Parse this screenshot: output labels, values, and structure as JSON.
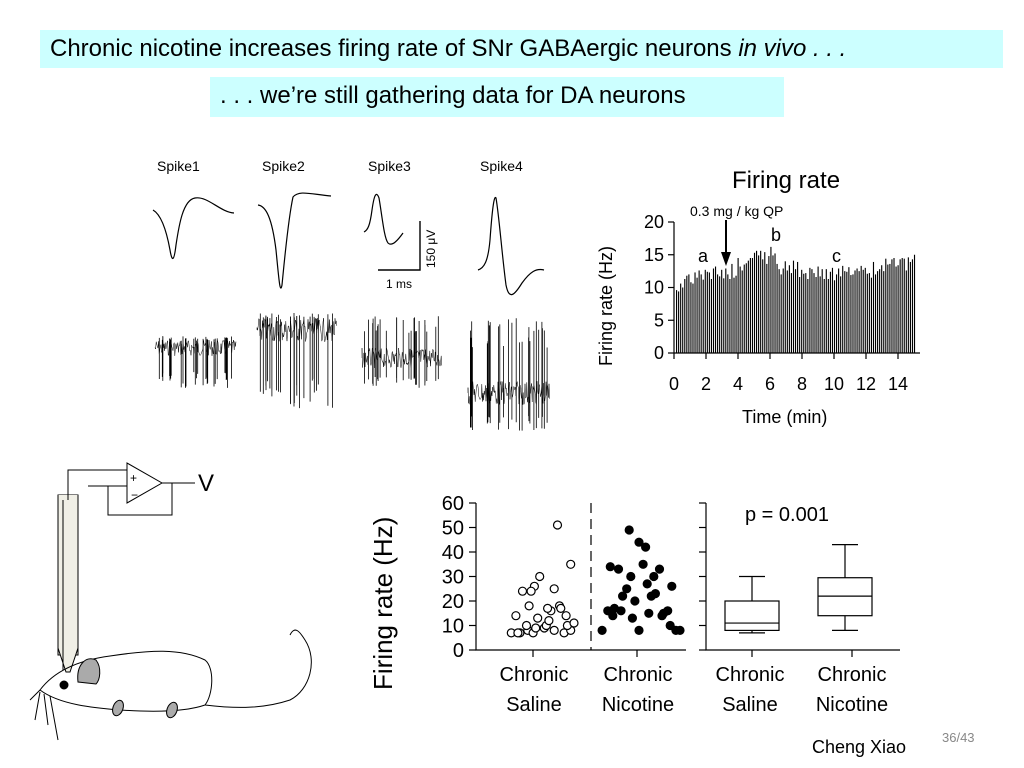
{
  "title_main": "Chronic nicotine increases firing rate of SNr GABAergic neurons ",
  "title_italic": "in vivo . . .",
  "subtitle": ". . . we’re still gathering data for DA neurons",
  "spikes": {
    "labels": [
      "Spike1",
      "Spike2",
      "Spike3",
      "Spike4"
    ],
    "scale_voltage": "150 μV",
    "scale_time": "1 ms"
  },
  "amp_label": "V",
  "amp_plus": "+",
  "amp_minus": "−",
  "firing_chart": {
    "title": "Firing rate",
    "annotation": "0.3 mg / kg QP",
    "marks": [
      "a",
      "b",
      "c"
    ],
    "xlabel": "Time (min)",
    "ylabel": "Firing rate (Hz)",
    "chart_data": {
      "type": "bar",
      "xlim": [
        0,
        15
      ],
      "ylim": [
        0,
        20
      ],
      "xticks": [
        0,
        2,
        4,
        6,
        8,
        10,
        12,
        14
      ],
      "yticks": [
        0,
        5,
        10,
        15,
        20
      ],
      "values": [
        9.6,
        9.4,
        10.6,
        10.0,
        11.3,
        11.8,
        12.0,
        10.8,
        10.6,
        12.3,
        11.5,
        12.6,
        12.0,
        11.2,
        12.7,
        12.4,
        12.3,
        11.3,
        12.9,
        13.2,
        12.0,
        11.7,
        12.7,
        11.4,
        12.9,
        12.0,
        11.3,
        13.6,
        11.5,
        11.8,
        14.5,
        13.2,
        12.6,
        13.5,
        13.7,
        14.1,
        14.5,
        14.5,
        15.3,
        15.6,
        14.9,
        15.6,
        14.3,
        15.4,
        13.6,
        14.8,
        16.2,
        14.9,
        15.2,
        13.6,
        12.8,
        12.0,
        12.9,
        14.0,
        12.6,
        13.4,
        12.2,
        14.1,
        12.8,
        13.9,
        11.6,
        12.7,
        12.1,
        12.2,
        11.3,
        13.0,
        12.8,
        12.2,
        11.6,
        13.2,
        11.7,
        12.8,
        11.3,
        12.8,
        11.3,
        12.4,
        13.0,
        11.1,
        12.0,
        12.9,
        11.7,
        13.3,
        12.5,
        12.4,
        13.1,
        11.9,
        12.0,
        12.6,
        12.9,
        12.5,
        13.3,
        12.7,
        13.0,
        12.1,
        12.2,
        11.5,
        13.9,
        12.0,
        12.5,
        12.8,
        13.4,
        12.5,
        14.4,
        13.5,
        13.6,
        14.3,
        14.5,
        13.2,
        13.4,
        14.3,
        14.5,
        14.4,
        12.6,
        14.6,
        13.9,
        14.3,
        15.0
      ]
    }
  },
  "scatter_chart": {
    "ylabel": "Firing rate (Hz)",
    "categories": [
      "Chronic\nSaline",
      "Chronic\nNicotine"
    ],
    "cat1": [
      "Chronic",
      "Saline"
    ],
    "cat2": [
      "Chronic",
      "Nicotine"
    ],
    "chart_data": {
      "type": "scatter",
      "ylim": [
        0,
        60
      ],
      "yticks": [
        0,
        10,
        20,
        30,
        40,
        50,
        60
      ],
      "series": [
        {
          "name": "Chronic Saline",
          "marker": "open",
          "points": [
            [
              0.05,
              7
            ],
            [
              0.18,
              7
            ],
            [
              0.3,
              8
            ],
            [
              0.38,
              7
            ],
            [
              0.12,
              14
            ],
            [
              0.28,
              10
            ],
            [
              0.55,
              9
            ],
            [
              0.7,
              8
            ],
            [
              0.85,
              7
            ],
            [
              0.95,
              8
            ],
            [
              0.65,
              16
            ],
            [
              0.45,
              13
            ],
            [
              0.6,
              17
            ],
            [
              0.78,
              18
            ],
            [
              0.9,
              10
            ],
            [
              0.22,
              24
            ],
            [
              0.4,
              26
            ],
            [
              0.48,
              30
            ],
            [
              0.35,
              24
            ],
            [
              0.7,
              25
            ],
            [
              0.95,
              35
            ],
            [
              0.75,
              51
            ],
            [
              0.58,
              10
            ],
            [
              0.88,
              14
            ],
            [
              0.15,
              7
            ],
            [
              0.42,
              9
            ],
            [
              1.0,
              11
            ],
            [
              0.8,
              17
            ],
            [
              0.32,
              18
            ],
            [
              0.62,
              12
            ]
          ]
        },
        {
          "name": "Chronic Nicotine",
          "marker": "filled",
          "points": [
            [
              0.05,
              8
            ],
            [
              0.12,
              16
            ],
            [
              0.18,
              14
            ],
            [
              0.2,
              17
            ],
            [
              0.28,
              16
            ],
            [
              0.35,
              25
            ],
            [
              0.4,
              30
            ],
            [
              0.3,
              22
            ],
            [
              0.42,
              13
            ],
            [
              0.45,
              20
            ],
            [
              0.5,
              8
            ],
            [
              0.55,
              35
            ],
            [
              0.6,
              27
            ],
            [
              0.65,
              22
            ],
            [
              0.5,
              44
            ],
            [
              0.58,
              42
            ],
            [
              0.7,
              23
            ],
            [
              0.75,
              33
            ],
            [
              0.8,
              15
            ],
            [
              0.85,
              16
            ],
            [
              0.9,
              26
            ],
            [
              0.95,
              8
            ],
            [
              0.88,
              10
            ],
            [
              1.0,
              8
            ],
            [
              0.25,
              33
            ],
            [
              0.38,
              49
            ],
            [
              0.78,
              14
            ],
            [
              0.68,
              30
            ],
            [
              0.15,
              34
            ],
            [
              0.62,
              15
            ]
          ]
        }
      ]
    }
  },
  "box_chart": {
    "pvalue": "p = 0.001",
    "cat1": [
      "Chronic",
      "Saline"
    ],
    "cat2": [
      "Chronic",
      "Nicotine"
    ],
    "chart_data": {
      "type": "box",
      "ylim": [
        0,
        60
      ],
      "boxes": [
        {
          "name": "Chronic Saline",
          "min": 7,
          "q1": 8,
          "median": 11,
          "q3": 20,
          "max": 30
        },
        {
          "name": "Chronic Nicotine",
          "min": 8,
          "q1": 14,
          "median": 22,
          "q3": 29.5,
          "max": 43
        }
      ]
    }
  },
  "author": "Cheng Xiao",
  "page_number": "36/43"
}
